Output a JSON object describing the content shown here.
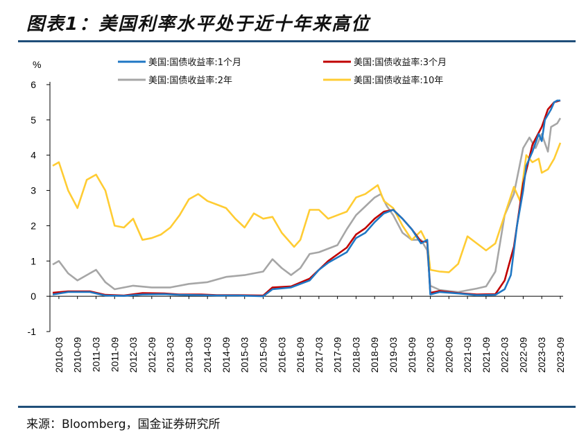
{
  "header": {
    "title": "图表1：美国利率水平处于近十年来高位"
  },
  "footer": {
    "source": "来源：Bloomberg，国金证券研究所"
  },
  "chart_data": {
    "type": "line",
    "title": "图表1：美国利率水平处于近十年来高位",
    "ylabel": "%",
    "xlabel": "",
    "ylim": [
      -1,
      6
    ],
    "yticks": [
      -1,
      0,
      1,
      2,
      3,
      4,
      5,
      6
    ],
    "grid": false,
    "legend_position": "top",
    "x_tick_labels": [
      "2010-03",
      "2010-09",
      "2011-03",
      "2011-09",
      "2012-03",
      "2012-09",
      "2013-03",
      "2013-09",
      "2014-03",
      "2014-09",
      "2015-03",
      "2015-09",
      "2016-03",
      "2016-09",
      "2017-03",
      "2017-09",
      "2018-03",
      "2018-09",
      "2019-03",
      "2019-09",
      "2020-03",
      "2020-09",
      "2021-03",
      "2021-09",
      "2022-03",
      "2022-09",
      "2023-03",
      "2023-09"
    ],
    "series": [
      {
        "name": "美国:国债收益率:1个月",
        "color": "#1f77c4",
        "points": [
          [
            "2010-01",
            0.05
          ],
          [
            "2010-06",
            0.12
          ],
          [
            "2011-01",
            0.12
          ],
          [
            "2011-06",
            0.02
          ],
          [
            "2011-12",
            0.01
          ],
          [
            "2012-06",
            0.05
          ],
          [
            "2013-01",
            0.06
          ],
          [
            "2013-06",
            0.04
          ],
          [
            "2014-01",
            0.03
          ],
          [
            "2014-06",
            0.02
          ],
          [
            "2015-01",
            0.02
          ],
          [
            "2015-09",
            0.0
          ],
          [
            "2015-12",
            0.2
          ],
          [
            "2016-06",
            0.25
          ],
          [
            "2016-12",
            0.45
          ],
          [
            "2017-03",
            0.75
          ],
          [
            "2017-06",
            0.95
          ],
          [
            "2017-12",
            1.25
          ],
          [
            "2018-03",
            1.65
          ],
          [
            "2018-06",
            1.8
          ],
          [
            "2018-09",
            2.1
          ],
          [
            "2018-12",
            2.35
          ],
          [
            "2019-03",
            2.45
          ],
          [
            "2019-06",
            2.2
          ],
          [
            "2019-09",
            1.9
          ],
          [
            "2019-12",
            1.5
          ],
          [
            "2020-02",
            1.6
          ],
          [
            "2020-03",
            0.05
          ],
          [
            "2020-06",
            0.12
          ],
          [
            "2020-12",
            0.08
          ],
          [
            "2021-06",
            0.03
          ],
          [
            "2021-12",
            0.04
          ],
          [
            "2022-03",
            0.2
          ],
          [
            "2022-05",
            0.6
          ],
          [
            "2022-07",
            2.0
          ],
          [
            "2022-09",
            3.0
          ],
          [
            "2022-10",
            3.7
          ],
          [
            "2022-12",
            4.1
          ],
          [
            "2023-02",
            4.6
          ],
          [
            "2023-03",
            4.4
          ],
          [
            "2023-04",
            5.0
          ],
          [
            "2023-06",
            5.3
          ],
          [
            "2023-07",
            5.5
          ],
          [
            "2023-08",
            5.55
          ],
          [
            "2023-09",
            5.55
          ]
        ]
      },
      {
        "name": "美国:国债收益率:3个月",
        "color": "#c00000",
        "points": [
          [
            "2010-01",
            0.1
          ],
          [
            "2010-06",
            0.14
          ],
          [
            "2011-01",
            0.14
          ],
          [
            "2011-06",
            0.04
          ],
          [
            "2011-12",
            0.02
          ],
          [
            "2012-06",
            0.09
          ],
          [
            "2013-01",
            0.08
          ],
          [
            "2013-06",
            0.05
          ],
          [
            "2014-01",
            0.05
          ],
          [
            "2014-06",
            0.03
          ],
          [
            "2015-01",
            0.03
          ],
          [
            "2015-09",
            0.02
          ],
          [
            "2015-12",
            0.25
          ],
          [
            "2016-06",
            0.28
          ],
          [
            "2016-12",
            0.5
          ],
          [
            "2017-03",
            0.75
          ],
          [
            "2017-06",
            1.0
          ],
          [
            "2017-12",
            1.38
          ],
          [
            "2018-03",
            1.75
          ],
          [
            "2018-06",
            1.93
          ],
          [
            "2018-09",
            2.2
          ],
          [
            "2018-12",
            2.4
          ],
          [
            "2019-03",
            2.45
          ],
          [
            "2019-06",
            2.2
          ],
          [
            "2019-09",
            1.9
          ],
          [
            "2019-12",
            1.55
          ],
          [
            "2020-02",
            1.55
          ],
          [
            "2020-03",
            0.1
          ],
          [
            "2020-06",
            0.15
          ],
          [
            "2020-12",
            0.09
          ],
          [
            "2021-06",
            0.05
          ],
          [
            "2021-12",
            0.06
          ],
          [
            "2022-03",
            0.45
          ],
          [
            "2022-06",
            1.4
          ],
          [
            "2022-09",
            3.2
          ],
          [
            "2022-12",
            4.3
          ],
          [
            "2023-03",
            4.8
          ],
          [
            "2023-05",
            5.3
          ],
          [
            "2023-07",
            5.5
          ],
          [
            "2023-09",
            5.55
          ]
        ]
      },
      {
        "name": "美国:国债收益率:2年",
        "color": "#a6a6a6",
        "points": [
          [
            "2010-01",
            0.9
          ],
          [
            "2010-03",
            1.0
          ],
          [
            "2010-06",
            0.65
          ],
          [
            "2010-09",
            0.45
          ],
          [
            "2010-12",
            0.6
          ],
          [
            "2011-03",
            0.75
          ],
          [
            "2011-06",
            0.4
          ],
          [
            "2011-09",
            0.2
          ],
          [
            "2012-03",
            0.3
          ],
          [
            "2012-09",
            0.25
          ],
          [
            "2013-03",
            0.25
          ],
          [
            "2013-09",
            0.35
          ],
          [
            "2014-03",
            0.4
          ],
          [
            "2014-09",
            0.55
          ],
          [
            "2015-03",
            0.6
          ],
          [
            "2015-09",
            0.7
          ],
          [
            "2015-12",
            1.05
          ],
          [
            "2016-03",
            0.8
          ],
          [
            "2016-06",
            0.6
          ],
          [
            "2016-09",
            0.8
          ],
          [
            "2016-12",
            1.2
          ],
          [
            "2017-03",
            1.25
          ],
          [
            "2017-09",
            1.45
          ],
          [
            "2017-12",
            1.9
          ],
          [
            "2018-03",
            2.3
          ],
          [
            "2018-06",
            2.55
          ],
          [
            "2018-09",
            2.8
          ],
          [
            "2018-11",
            2.9
          ],
          [
            "2019-01",
            2.55
          ],
          [
            "2019-03",
            2.3
          ],
          [
            "2019-06",
            1.8
          ],
          [
            "2019-09",
            1.6
          ],
          [
            "2019-12",
            1.6
          ],
          [
            "2020-02",
            1.3
          ],
          [
            "2020-03",
            0.3
          ],
          [
            "2020-06",
            0.18
          ],
          [
            "2020-12",
            0.12
          ],
          [
            "2021-06",
            0.22
          ],
          [
            "2021-09",
            0.28
          ],
          [
            "2021-12",
            0.7
          ],
          [
            "2022-03",
            2.3
          ],
          [
            "2022-06",
            2.9
          ],
          [
            "2022-09",
            4.2
          ],
          [
            "2022-11",
            4.5
          ],
          [
            "2023-01",
            4.2
          ],
          [
            "2023-03",
            4.6
          ],
          [
            "2023-05",
            4.1
          ],
          [
            "2023-06",
            4.8
          ],
          [
            "2023-08",
            4.9
          ],
          [
            "2023-09",
            5.05
          ]
        ]
      },
      {
        "name": "美国:国债收益率:10年",
        "color": "#ffcc33",
        "points": [
          [
            "2010-01",
            3.7
          ],
          [
            "2010-03",
            3.8
          ],
          [
            "2010-06",
            3.0
          ],
          [
            "2010-09",
            2.5
          ],
          [
            "2010-12",
            3.3
          ],
          [
            "2011-03",
            3.45
          ],
          [
            "2011-06",
            3.0
          ],
          [
            "2011-09",
            2.0
          ],
          [
            "2011-12",
            1.95
          ],
          [
            "2012-03",
            2.2
          ],
          [
            "2012-06",
            1.6
          ],
          [
            "2012-09",
            1.65
          ],
          [
            "2012-12",
            1.75
          ],
          [
            "2013-03",
            1.95
          ],
          [
            "2013-06",
            2.3
          ],
          [
            "2013-09",
            2.75
          ],
          [
            "2013-12",
            2.9
          ],
          [
            "2014-03",
            2.7
          ],
          [
            "2014-06",
            2.6
          ],
          [
            "2014-09",
            2.5
          ],
          [
            "2014-12",
            2.2
          ],
          [
            "2015-03",
            1.95
          ],
          [
            "2015-06",
            2.35
          ],
          [
            "2015-09",
            2.2
          ],
          [
            "2015-12",
            2.25
          ],
          [
            "2016-03",
            1.8
          ],
          [
            "2016-07",
            1.4
          ],
          [
            "2016-09",
            1.6
          ],
          [
            "2016-12",
            2.45
          ],
          [
            "2017-03",
            2.45
          ],
          [
            "2017-06",
            2.2
          ],
          [
            "2017-09",
            2.3
          ],
          [
            "2017-12",
            2.4
          ],
          [
            "2018-03",
            2.8
          ],
          [
            "2018-06",
            2.9
          ],
          [
            "2018-10",
            3.15
          ],
          [
            "2018-12",
            2.7
          ],
          [
            "2019-03",
            2.5
          ],
          [
            "2019-06",
            2.0
          ],
          [
            "2019-09",
            1.6
          ],
          [
            "2019-12",
            1.85
          ],
          [
            "2020-02",
            1.5
          ],
          [
            "2020-03",
            0.75
          ],
          [
            "2020-06",
            0.7
          ],
          [
            "2020-09",
            0.68
          ],
          [
            "2020-12",
            0.92
          ],
          [
            "2021-03",
            1.7
          ],
          [
            "2021-06",
            1.5
          ],
          [
            "2021-09",
            1.3
          ],
          [
            "2021-12",
            1.5
          ],
          [
            "2022-03",
            2.3
          ],
          [
            "2022-06",
            3.1
          ],
          [
            "2022-08",
            2.7
          ],
          [
            "2022-10",
            4.0
          ],
          [
            "2022-12",
            3.8
          ],
          [
            "2023-02",
            3.9
          ],
          [
            "2023-03",
            3.5
          ],
          [
            "2023-05",
            3.6
          ],
          [
            "2023-07",
            3.9
          ],
          [
            "2023-09",
            4.35
          ]
        ]
      }
    ]
  }
}
